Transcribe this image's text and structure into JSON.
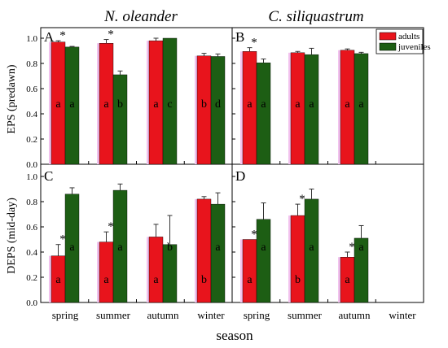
{
  "chart_data": {
    "type": "bar",
    "xlabel": "season",
    "column_titles": [
      "N. oleander",
      "C. siliquastrum"
    ],
    "row_ylabels": [
      "EPS (predawn)",
      "DEPS (mid-day)"
    ],
    "categories": [
      "spring",
      "summer",
      "autumn",
      "winter"
    ],
    "ylim": [
      0.0,
      1.1
    ],
    "yticks": [
      "0.0",
      "0.2",
      "0.4",
      "0.6",
      "0.8",
      "1.0"
    ],
    "legend": {
      "placement": "top-right",
      "entries": [
        "adults",
        "juveniles"
      ]
    },
    "colors": {
      "adults": "#e8141c",
      "juveniles": "#1d5e14",
      "highlight": "#f2c2ee"
    },
    "panels": [
      {
        "label": "A",
        "series": [
          {
            "name": "adults",
            "values": [
              0.97,
              0.96,
              0.98,
              0.86
            ],
            "err": [
              0.01,
              0.03,
              0.02,
              0.02
            ],
            "letters": [
              "a",
              "a",
              "a",
              "b"
            ]
          },
          {
            "name": "juveniles",
            "values": [
              0.93,
              0.71,
              1.0,
              0.855
            ],
            "err": [
              0.005,
              0.03,
              0.0,
              0.02
            ],
            "letters": [
              "a",
              "b",
              "c",
              "d"
            ]
          }
        ],
        "sig": [
          true,
          true,
          false,
          false
        ]
      },
      {
        "label": "B",
        "series": [
          {
            "name": "adults",
            "values": [
              0.895,
              0.885,
              0.905,
              null
            ],
            "err": [
              0.03,
              0.01,
              0.01,
              null
            ],
            "letters": [
              "a",
              "a",
              "a",
              ""
            ]
          },
          {
            "name": "juveniles",
            "values": [
              0.805,
              0.87,
              0.878,
              null
            ],
            "err": [
              0.03,
              0.05,
              0.01,
              null
            ],
            "letters": [
              "a",
              "a",
              "a",
              ""
            ]
          }
        ],
        "sig": [
          true,
          false,
          false,
          false
        ]
      },
      {
        "label": "C",
        "series": [
          {
            "name": "adults",
            "values": [
              0.37,
              0.48,
              0.52,
              0.82
            ],
            "err": [
              0.09,
              0.08,
              0.1,
              0.02
            ],
            "letters": [
              "a",
              "a",
              "a",
              "b"
            ]
          },
          {
            "name": "juveniles",
            "values": [
              0.86,
              0.89,
              0.46,
              0.78
            ],
            "err": [
              0.05,
              0.05,
              0.23,
              0.09
            ],
            "letters": [
              "a",
              "a",
              "b",
              "a"
            ]
          }
        ],
        "sig": [
          true,
          true,
          false,
          false
        ]
      },
      {
        "label": "D",
        "series": [
          {
            "name": "adults",
            "values": [
              0.5,
              0.69,
              0.36,
              null
            ],
            "err": [
              0.0,
              0.09,
              0.04,
              null
            ],
            "letters": [
              "a",
              "b",
              "a",
              ""
            ]
          },
          {
            "name": "juveniles",
            "values": [
              0.66,
              0.82,
              0.51,
              null
            ],
            "err": [
              0.13,
              0.08,
              0.1,
              null
            ],
            "letters": [
              "a",
              "a",
              "a",
              ""
            ]
          }
        ],
        "sig": [
          true,
          true,
          true,
          false
        ]
      }
    ]
  }
}
